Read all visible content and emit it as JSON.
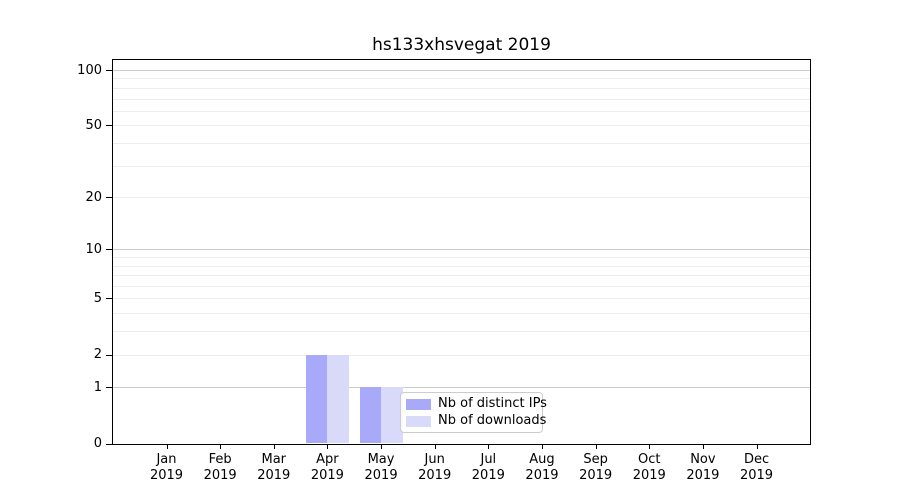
{
  "chart_data": {
    "type": "bar",
    "title": "hs133xhsvegat 2019",
    "x_months": [
      "Jan",
      "Feb",
      "Mar",
      "Apr",
      "May",
      "Jun",
      "Jul",
      "Aug",
      "Sep",
      "Oct",
      "Nov",
      "Dec"
    ],
    "x_year": "2019",
    "series": [
      {
        "name": "Nb of distinct IPs",
        "color": "#a9a9f9",
        "values": [
          0,
          0,
          0,
          2,
          1,
          0,
          0,
          0,
          0,
          0,
          0,
          0
        ]
      },
      {
        "name": "Nb of downloads",
        "color": "#d9d9fa",
        "values": [
          0,
          0,
          0,
          2,
          1,
          0,
          0,
          0,
          0,
          0,
          0,
          0
        ]
      }
    ],
    "yscale": "log1p",
    "ylim": [
      0,
      113
    ],
    "yticks": [
      0,
      1,
      2,
      5,
      10,
      20,
      50,
      100
    ],
    "grid": {
      "minor_values": [
        2,
        3,
        4,
        5,
        6,
        7,
        8,
        9,
        20,
        30,
        40,
        50,
        60,
        70,
        80,
        90
      ],
      "major_values": [
        1,
        10,
        100
      ],
      "minor_color": "#ededed",
      "major_color": "#cccccc"
    },
    "legend_position": "lower center (inside axes)",
    "axis_color": "#000000",
    "background_color": "#ffffff"
  }
}
